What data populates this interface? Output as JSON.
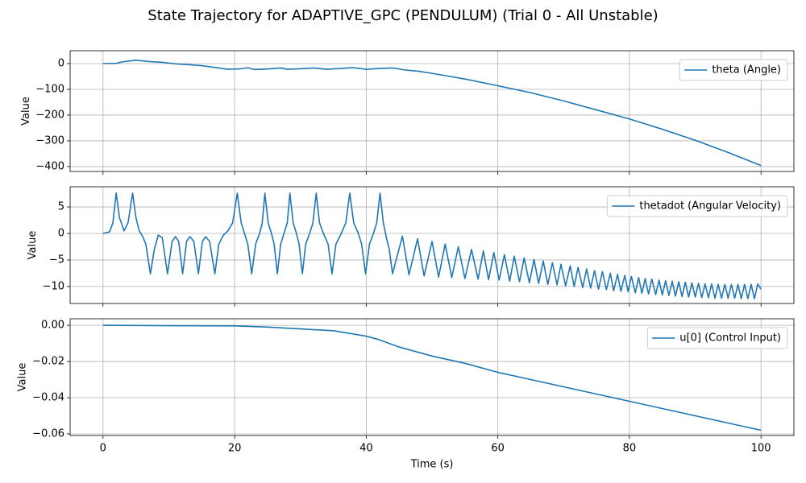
{
  "title": "State Trajectory for ADAPTIVE_GPC (PENDULUM) (Trial 0 - All Unstable)",
  "chart_data": [
    {
      "type": "line",
      "ylabel": "Value",
      "legend": "upper right",
      "grid": true,
      "xlim": [
        -5,
        105
      ],
      "xticks": [
        0,
        20,
        40,
        60,
        80,
        100
      ],
      "ylim": [
        -419,
        50
      ],
      "yticks": [
        {
          "value": -400,
          "label": "−400"
        },
        {
          "value": -300,
          "label": "−300"
        },
        {
          "value": -200,
          "label": "−200"
        },
        {
          "value": -100,
          "label": "−100"
        },
        0
      ],
      "x": [
        0,
        2,
        3,
        5,
        7,
        9,
        11,
        13,
        15,
        17,
        19,
        21,
        22,
        23,
        25,
        27,
        28,
        30,
        32,
        34,
        36,
        38,
        40,
        42,
        44,
        46,
        48,
        50,
        55,
        60,
        65,
        70,
        75,
        80,
        85,
        90,
        95,
        100
      ],
      "series": [
        {
          "name": "theta (Angle)",
          "color": "#1f77b4",
          "values": [
            0,
            1,
            7,
            13,
            8,
            5,
            -1,
            -4,
            -8,
            -15,
            -22,
            -20,
            -16,
            -23,
            -21,
            -17,
            -22,
            -20,
            -17,
            -22,
            -19,
            -16,
            -22,
            -19,
            -17,
            -25,
            -30,
            -38,
            -60,
            -86,
            -113,
            -145,
            -180,
            -215,
            -255,
            -298,
            -345,
            -396
          ]
        }
      ]
    },
    {
      "type": "line",
      "ylabel": "Value",
      "legend": "upper right",
      "grid": true,
      "xlim": [
        -5,
        105
      ],
      "xticks": [
        0,
        20,
        40,
        60,
        80,
        100
      ],
      "ylim": [
        -13.2,
        8.8
      ],
      "yticks": [
        {
          "value": -10,
          "label": "−10"
        },
        {
          "value": -5,
          "label": "−5"
        },
        0,
        5
      ],
      "x": [
        0,
        1,
        1.5,
        2,
        2.5,
        3.2,
        3.8,
        4.5,
        5,
        5.5,
        6,
        6.5,
        7.2,
        7.8,
        8.4,
        9,
        9.8,
        10.5,
        11,
        11.5,
        12.1,
        12.7,
        13.2,
        13.8,
        14.5,
        15.1,
        15.6,
        16.2,
        17,
        17.6,
        18.3,
        19,
        19.7,
        20.4,
        21,
        21.5,
        22,
        22.6,
        23.2,
        23.8,
        24.2,
        24.6,
        25.1,
        25.6,
        26,
        26.5,
        27,
        27.5,
        28,
        28.4,
        28.9,
        29.4,
        29.8,
        30.3,
        30.8,
        31.4,
        31.9,
        32.4,
        32.9,
        33.5,
        34.2,
        34.8,
        35.4,
        36.2,
        36.9,
        37.5,
        38.1,
        38.8,
        39.3,
        39.9,
        40.5,
        41.1,
        41.6,
        42.1,
        42.6,
        43.1,
        43.5,
        44,
        45.5,
        46.5,
        47.8,
        48.8,
        50,
        51,
        52,
        53,
        54,
        55,
        56,
        57,
        57.8,
        58.6,
        59.4,
        60.2,
        61,
        61.8,
        62.5,
        63.3,
        64,
        64.8,
        65.5,
        66.2,
        66.9,
        67.6,
        68.3,
        69,
        69.6,
        70.3,
        71,
        71.6,
        72.2,
        72.9,
        73.5,
        74.1,
        74.7,
        75.3,
        75.9,
        76.5,
        77.1,
        77.6,
        78.2,
        78.7,
        79.3,
        79.8,
        80.3,
        80.9,
        81.4,
        81.9,
        82.4,
        82.9,
        83.4,
        84,
        84.5,
        85,
        85.5,
        86,
        86.5,
        87,
        87.5,
        88,
        88.5,
        89,
        89.5,
        90,
        90.5,
        91,
        91.5,
        92,
        92.5,
        93,
        93.5,
        94,
        94.5,
        95,
        95.5,
        96,
        96.5,
        97,
        97.5,
        98,
        98.5,
        99,
        99.5,
        100
      ],
      "series": [
        {
          "name": "thetadot (Angular Velocity)",
          "color": "#1f77b4",
          "values": [
            0,
            0.3,
            2,
            7.6,
            3,
            0.5,
            2,
            7.6,
            3,
            0.5,
            -0.5,
            -2,
            -7.6,
            -3,
            -0.3,
            -0.8,
            -7.6,
            -1.5,
            -0.6,
            -1.5,
            -7.6,
            -1.5,
            -0.6,
            -1.5,
            -7.6,
            -1.5,
            -0.6,
            -1.5,
            -7.6,
            -2,
            -0.3,
            0.5,
            2,
            7.6,
            2,
            0,
            -2,
            -7.6,
            -2,
            0,
            2,
            7.6,
            2,
            0,
            -2,
            -7.6,
            -2,
            0,
            2,
            7.6,
            2,
            0,
            -2,
            -7.6,
            -2,
            0,
            2,
            7.6,
            2,
            0,
            -2,
            -7.6,
            -2,
            0,
            2,
            7.6,
            2,
            0,
            -2,
            -7.6,
            -2,
            0,
            2,
            7.6,
            2,
            -1,
            -3,
            -7.6,
            -0.5,
            -7.8,
            -1,
            -8,
            -1.5,
            -8.2,
            -2,
            -8.3,
            -2.5,
            -8.5,
            -3,
            -8.6,
            -3.3,
            -8.7,
            -3.6,
            -8.8,
            -4,
            -9,
            -4.3,
            -9.1,
            -4.6,
            -9.3,
            -4.9,
            -9.4,
            -5.2,
            -9.6,
            -5.5,
            -9.7,
            -5.8,
            -9.9,
            -6.1,
            -10,
            -6.4,
            -10.2,
            -6.7,
            -10.3,
            -7,
            -10.5,
            -7.2,
            -10.6,
            -7.5,
            -10.8,
            -7.7,
            -10.9,
            -7.9,
            -11,
            -8.1,
            -11.2,
            -8.3,
            -11.3,
            -8.5,
            -11.4,
            -8.6,
            -11.5,
            -8.8,
            -11.6,
            -8.9,
            -11.7,
            -9,
            -11.8,
            -9.1,
            -11.9,
            -9.2,
            -12,
            -9.3,
            -12,
            -9.4,
            -12.1,
            -9.5,
            -12.1,
            -9.5,
            -12.2,
            -9.6,
            -12.2,
            -9.6,
            -12.2,
            -9.6,
            -12.2,
            -9.6,
            -12.3,
            -9.6,
            -12.3,
            -9.6,
            -12.3,
            -9.5,
            -10.5
          ]
        }
      ]
    },
    {
      "type": "line",
      "ylabel": "Value",
      "xlabel": "Time (s)",
      "legend": "upper right",
      "grid": true,
      "xlim": [
        -5,
        105
      ],
      "xticks": [
        0,
        20,
        40,
        60,
        80,
        100
      ],
      "ylim": [
        -0.0609,
        0.0036
      ],
      "yticks": [
        {
          "value": -0.06,
          "label": "−0.06"
        },
        {
          "value": -0.04,
          "label": "−0.04"
        },
        {
          "value": -0.02,
          "label": "−0.02"
        },
        {
          "value": 0,
          "label": "0.00"
        }
      ],
      "x": [
        0,
        10,
        20,
        25,
        30,
        35,
        40,
        42,
        45,
        50,
        55,
        60,
        65,
        70,
        75,
        80,
        85,
        90,
        95,
        100
      ],
      "series": [
        {
          "name": "u[0] (Control Input)",
          "color": "#1f77b4",
          "values": [
            0,
            -0.0002,
            -0.0003,
            -0.001,
            -0.002,
            -0.003,
            -0.006,
            -0.008,
            -0.012,
            -0.017,
            -0.021,
            -0.026,
            -0.03,
            -0.034,
            -0.038,
            -0.042,
            -0.046,
            -0.05,
            -0.054,
            -0.058
          ]
        }
      ]
    }
  ]
}
